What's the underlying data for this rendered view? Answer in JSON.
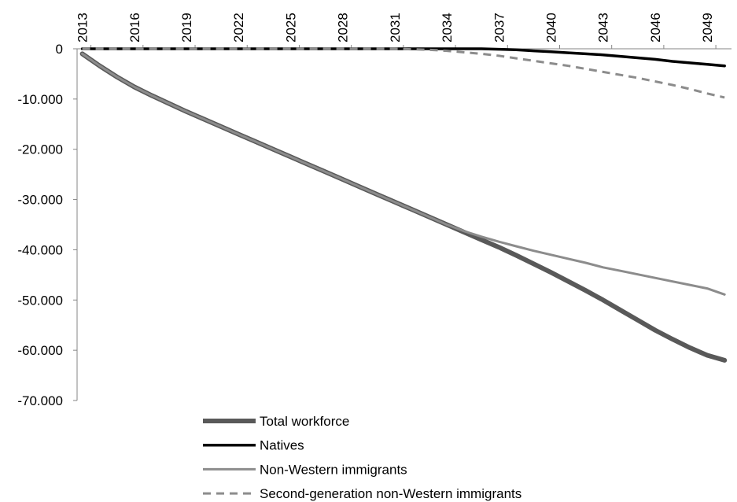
{
  "chart_data": {
    "type": "line",
    "x": [
      2013,
      2014,
      2015,
      2016,
      2017,
      2018,
      2019,
      2020,
      2021,
      2022,
      2023,
      2024,
      2025,
      2026,
      2027,
      2028,
      2029,
      2030,
      2031,
      2032,
      2033,
      2034,
      2035,
      2036,
      2037,
      2038,
      2039,
      2040,
      2041,
      2042,
      2043,
      2044,
      2045,
      2046,
      2047,
      2048,
      2049,
      2050
    ],
    "xlim": [
      2012.7,
      2050.4
    ],
    "xticks": [
      2013,
      2016,
      2019,
      2022,
      2025,
      2028,
      2031,
      2034,
      2037,
      2040,
      2043,
      2046,
      2049
    ],
    "ylim": [
      -70000,
      0
    ],
    "yticks": [
      {
        "value": 0,
        "label": "0"
      },
      {
        "value": -10000,
        "label": "-10.000"
      },
      {
        "value": -20000,
        "label": "-20.000"
      },
      {
        "value": -30000,
        "label": "-30.000"
      },
      {
        "value": -40000,
        "label": "-40.000"
      },
      {
        "value": -50000,
        "label": "-50.000"
      },
      {
        "value": -60000,
        "label": "-60.000"
      },
      {
        "value": -70000,
        "label": "-70.000"
      }
    ],
    "series": [
      {
        "name": "Total workforce",
        "color": "#595959",
        "values": [
          -1000,
          -3400,
          -5600,
          -7600,
          -9300,
          -10900,
          -12500,
          -14000,
          -15500,
          -17000,
          -18500,
          -20000,
          -21500,
          -23000,
          -24500,
          -26000,
          -27500,
          -29000,
          -30500,
          -32000,
          -33500,
          -35000,
          -36500,
          -38000,
          -39500,
          -41100,
          -42800,
          -44500,
          -46300,
          -48100,
          -50000,
          -52000,
          -54000,
          -56000,
          -57800,
          -59500,
          -61000,
          -62000
        ]
      },
      {
        "name": "Natives",
        "color": "#000000",
        "values": [
          0,
          0,
          0,
          0,
          0,
          0,
          0,
          0,
          0,
          0,
          0,
          0,
          0,
          0,
          0,
          0,
          0,
          0,
          0,
          0,
          0,
          0,
          0,
          0,
          -100,
          -200,
          -400,
          -600,
          -800,
          -1000,
          -1200,
          -1500,
          -1800,
          -2100,
          -2500,
          -2800,
          -3100,
          -3400
        ]
      },
      {
        "name": "Non-Western immigrants",
        "color": "#8c8c8c",
        "values": [
          -1000,
          -3400,
          -5600,
          -7600,
          -9300,
          -10900,
          -12500,
          -14000,
          -15500,
          -17000,
          -18500,
          -20000,
          -21500,
          -23000,
          -24500,
          -26000,
          -27500,
          -29000,
          -30500,
          -32000,
          -33500,
          -35000,
          -36300,
          -37400,
          -38400,
          -39300,
          -40200,
          -41000,
          -41800,
          -42600,
          -43500,
          -44200,
          -44900,
          -45600,
          -46300,
          -47000,
          -47700,
          -48900
        ]
      },
      {
        "name": "Second-generation non-Western immigrants",
        "color": "#8c8c8c",
        "dashed": true,
        "values": [
          0,
          0,
          0,
          0,
          0,
          0,
          0,
          0,
          0,
          0,
          0,
          0,
          0,
          0,
          0,
          0,
          0,
          0,
          0,
          -100,
          -200,
          -400,
          -700,
          -1000,
          -1400,
          -1900,
          -2400,
          -2900,
          -3400,
          -4000,
          -4600,
          -5200,
          -5800,
          -6500,
          -7200,
          -8000,
          -8900,
          -9700
        ]
      }
    ]
  }
}
